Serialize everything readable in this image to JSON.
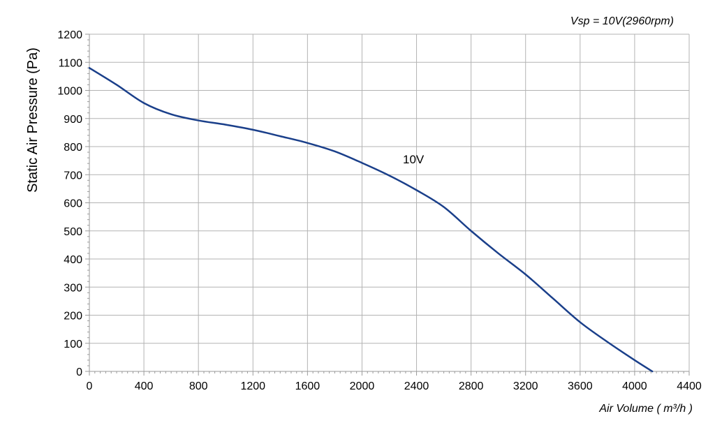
{
  "chart_data": {
    "type": "line",
    "subtitle": "Vsp = 10V(2960rpm)",
    "xlabel": "Air Volume ( m³/h )",
    "ylabel": "Static Air Pressure  (Pa)",
    "xlim": [
      0,
      4400
    ],
    "ylim": [
      0,
      1200
    ],
    "x_ticks": [
      0,
      400,
      800,
      1200,
      1600,
      2000,
      2400,
      2800,
      3200,
      3600,
      4000,
      4400
    ],
    "y_ticks": [
      0,
      100,
      200,
      300,
      400,
      500,
      600,
      700,
      800,
      900,
      1000,
      1100,
      1200
    ],
    "grid": true,
    "series": [
      {
        "name": "10V",
        "color": "#1a3f8a",
        "x": [
          0,
          200,
          400,
          600,
          800,
          1000,
          1200,
          1400,
          1600,
          1800,
          2000,
          2200,
          2400,
          2600,
          2800,
          3000,
          3200,
          3400,
          3600,
          3800,
          4000,
          4130
        ],
        "y": [
          1080,
          1020,
          955,
          915,
          893,
          878,
          860,
          837,
          813,
          783,
          742,
          697,
          645,
          585,
          500,
          420,
          345,
          260,
          175,
          105,
          40,
          0
        ]
      }
    ],
    "annotations": [
      {
        "text": "10V",
        "x": 2300,
        "y": 740
      }
    ]
  }
}
